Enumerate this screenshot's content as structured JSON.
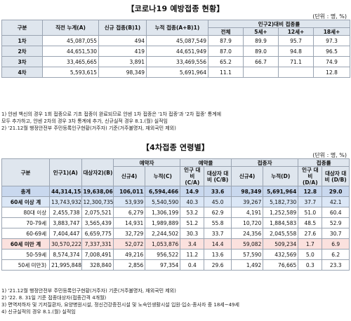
{
  "top": {
    "title": "【코로나19 예방접종 현황】",
    "unit": "(단위 : 명, %)",
    "headers": {
      "c1": "구분",
      "c2": "직전 누계(A)",
      "c3": "신규 접종(B)1)",
      "c4": "누적 접종(A+B)1)",
      "c5": "인구2)대비 접종률",
      "s1": "전체",
      "s2": "5세+",
      "s3": "12세+",
      "s4": "18세+"
    },
    "rows": [
      {
        "label": "1차",
        "a": "45,087,055",
        "b": "494",
        "ab": "45,087,549",
        "all": "87.9",
        "r5": "89.9",
        "r12": "95.7",
        "r18": "97.3"
      },
      {
        "label": "2차",
        "a": "44,651,530",
        "b": "419",
        "ab": "44,651,949",
        "all": "87.0",
        "r5": "89.0",
        "r12": "94.8",
        "r18": "96.5"
      },
      {
        "label": "3차",
        "a": "33,465,665",
        "b": "3,891",
        "ab": "33,469,556",
        "all": "65.2",
        "r5": "66.7",
        "r12": "71.1",
        "r18": "74.9"
      },
      {
        "label": "4차",
        "a": "5,593,615",
        "b": "98,349",
        "ab": "5,691,964",
        "all": "11.1",
        "r5": "",
        "r12": "",
        "r18": "12.8"
      }
    ],
    "notes": [
      "1) 얀센 백신의 경우 1회 접종으로 기초 접종이 완료되므로 얀센 1차 접종은 '1차 접종'과 '2차 접종' 통계에",
      "   모두 추가하고, 얀센 2차의 경우 3차 통계에 추가, 신규실적 경우 8.1.(월) 실적임",
      "2) '21.12월 행정안전부 주민등록인구현황(거주자) 기준(거주불명자, 재외국민 제외)"
    ]
  },
  "bottom": {
    "title": "【4차접종 연령별】",
    "unit": "(단위 : 명, %)",
    "headers": {
      "c1": "구분",
      "c2": "인구1)(A)",
      "c3": "대상자2)(B)",
      "g1": "예약자",
      "g2": "예약율",
      "g3": "접종자",
      "g4": "접종률",
      "r_new": "신규4)",
      "r_cum": "누적(C)",
      "r_pop": "인구 대비 (C/A)",
      "r_tgt": "대상자 대비 (C/B)",
      "v_new": "신규4)",
      "v_cum": "누적(D)",
      "v_pop": "인구 대비 (D/A)",
      "v_tgt": "대상자 대비 (D/B)"
    },
    "rows": [
      {
        "label": "총계",
        "pop": "44,314,154",
        "tgt": "19,638,066",
        "rn": "106,011",
        "rc": "6,594,466",
        "rp": "14.9",
        "rt": "33.6",
        "vn": "98,349",
        "vc": "5,691,964",
        "vp": "12.8",
        "vt": "29.0",
        "style": "total"
      },
      {
        "label": "60세 이상 계",
        "pop": "13,743,932",
        "tgt": "12,300,735",
        "rn": "53,939",
        "rc": "5,540,590",
        "rp": "40.3",
        "rt": "45.0",
        "vn": "39,267",
        "vc": "5,182,730",
        "vp": "37.7",
        "vt": "42.1",
        "style": "hl-blue"
      },
      {
        "label": "80대 이상",
        "pop": "2,455,738",
        "tgt": "2,075,521",
        "rn": "6,279",
        "rc": "1,306,199",
        "rp": "53.2",
        "rt": "62.9",
        "vn": "4,191",
        "vc": "1,252,589",
        "vp": "51.0",
        "vt": "60.4",
        "style": "sub"
      },
      {
        "label": "70-79세",
        "pop": "3,883,747",
        "tgt": "3,565,439",
        "rn": "14,931",
        "rc": "1,989,889",
        "rp": "51.2",
        "rt": "55.8",
        "vn": "10,720",
        "vc": "1,884,583",
        "vp": "48.5",
        "vt": "52.9",
        "style": "sub"
      },
      {
        "label": "60-69세",
        "pop": "7,404,447",
        "tgt": "6,659,775",
        "rn": "32,729",
        "rc": "2,244,502",
        "rp": "30.3",
        "rt": "33.7",
        "vn": "24,356",
        "vc": "2,045,558",
        "vp": "27.6",
        "vt": "30.7",
        "style": "sub"
      },
      {
        "label": "60세 미만 계",
        "pop": "30,570,222",
        "tgt": "7,337,331",
        "rn": "52,072",
        "rc": "1,053,876",
        "rp": "3.4",
        "rt": "14.4",
        "vn": "59,082",
        "vc": "509,234",
        "vp": "1.7",
        "vt": "6.9",
        "style": "hl-red"
      },
      {
        "label": "50-59세",
        "pop": "8,574,374",
        "tgt": "7,008,491",
        "rn": "49,216",
        "rc": "956,522",
        "rp": "11.2",
        "rt": "13.6",
        "vn": "57,590",
        "vc": "432,569",
        "vp": "5.0",
        "vt": "6.2",
        "style": "sub"
      },
      {
        "label": "50세 미만3)",
        "pop": "21,995,848",
        "tgt": "328,840",
        "rn": "2,856",
        "rc": "97,354",
        "rp": "0.4",
        "rt": "29.6",
        "vn": "1,492",
        "vc": "76,665",
        "vp": "0.3",
        "vt": "23.3",
        "style": "sub"
      }
    ],
    "notes": [
      "1) '21.12월 행정안전부 주민등록인구현황(거주자) 기준(거주불명자, 재외국민 제외)",
      "2) '22. 8. 31일 기준 접종대상자(접종간격 4개월)",
      "3) 면역저하자 및 기저질환자, 요양병원시설, 정신건강증진시설 및 노숙인생활시설 입원·입소·종사자 중 18세~49세",
      "4) 신규실적의 경우 8.1.(월) 실적임"
    ]
  }
}
